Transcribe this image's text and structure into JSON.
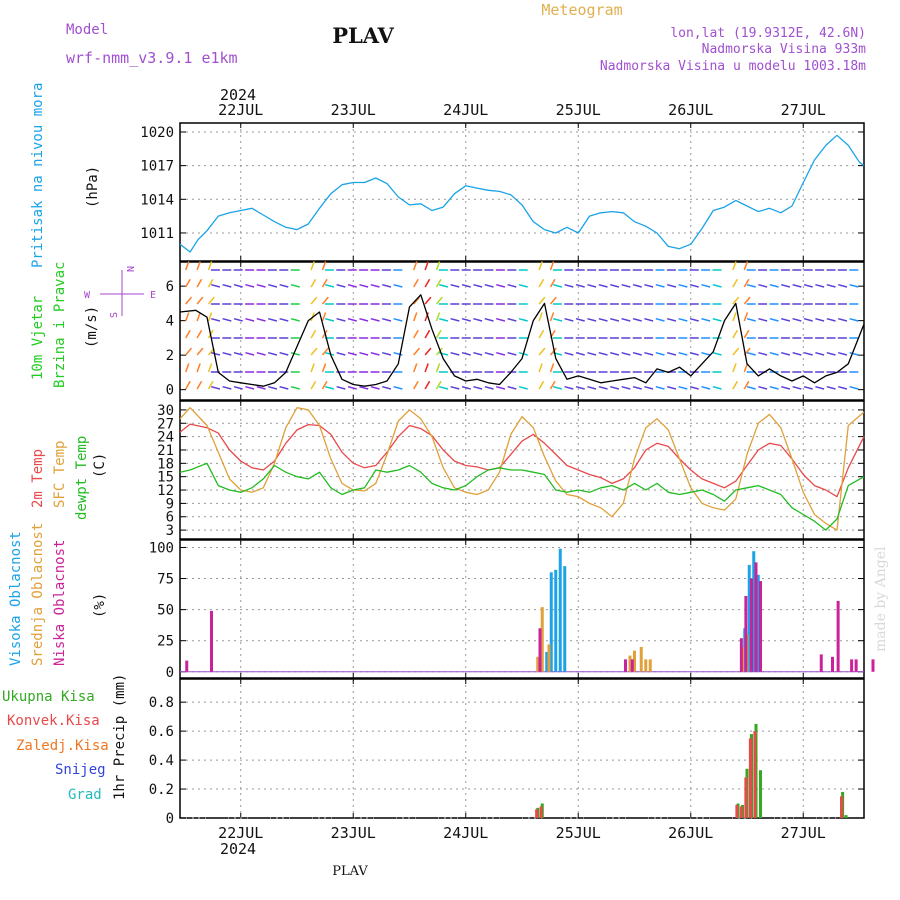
{
  "header": {
    "model_label": "Model",
    "model_value": "wrf-nmm_v3.9.1  e1km",
    "station": "PLAV",
    "title": "Meteogram",
    "lonlat": "lon,lat (19.9312E, 42.6N)",
    "elevation": "Nadmorska Visina 933m",
    "model_elevation": "Nadmorska Visina u modelu 1003.18m",
    "year_top": "2024",
    "year_bottom": "2024",
    "footer_station": "PLAV",
    "watermark": "made by Angel"
  },
  "time_axis": {
    "labels": [
      "22JUL",
      "23JUL",
      "24JUL",
      "25JUL",
      "26JUL",
      "27JUL"
    ],
    "tick_days": [
      0,
      1,
      2,
      3,
      4,
      5
    ],
    "range_days": [
      -0.54,
      5.54
    ]
  },
  "colors": {
    "pressure": "#1aa3e8",
    "temp2m": "#e8494b",
    "sfc_temp": "#e0a03a",
    "dewpt": "#22bb22",
    "high_cloud": "#1aa3e8",
    "mid_cloud": "#e0a03a",
    "low_cloud": "#cc2299",
    "total_rain": "#33aa22",
    "conv_rain": "#e8494b",
    "frozen_rain": "#ee7722",
    "snow": "#3344dd",
    "graupel": "#22bbbb",
    "wind_label": "#22cc22",
    "wind_compass": "#aa44cc"
  },
  "panels": {
    "pressure": {
      "ylabel_color_text": "Pritisak na nivou mora",
      "unit": "(hPa)",
      "ticks": [
        "1011",
        "1014",
        "1017",
        "1020"
      ]
    },
    "wind": {
      "ylabel_line1": "10m Vjetar",
      "ylabel_line2": "Brzina i Pravac",
      "unit": "(m/s)",
      "ticks": [
        "0",
        "2",
        "4",
        "6"
      ],
      "compass_n": "N",
      "compass_w": "W",
      "compass_e": "E",
      "compass_s": "S"
    },
    "temperature": {
      "ylabel_temp2m": "2m Temp",
      "ylabel_sfc": "SFC Temp",
      "ylabel_dewpt": "dewpt Temp",
      "unit": "(C)",
      "ticks": [
        "3",
        "6",
        "9",
        "12",
        "15",
        "18",
        "21",
        "24",
        "27",
        "30"
      ]
    },
    "clouds": {
      "ylabel_high": "Visoka Oblacnost",
      "ylabel_mid": "Srednja Oblacnost",
      "ylabel_low": "Niska Oblacnost",
      "unit": "(%)",
      "ticks": [
        "0",
        "25",
        "50",
        "75",
        "100"
      ]
    },
    "precip": {
      "legend": [
        "Ukupna Kisa",
        "Konvek.Kisa",
        "Zaledj.Kisa",
        "Snijeg",
        "Grad"
      ],
      "ylabel": "1hr Precip (mm)",
      "ticks": [
        "0",
        "0.2",
        "0.4",
        "0.6",
        "0.8"
      ]
    }
  },
  "chart_data": [
    {
      "type": "line",
      "title": "Pritisak na nivou mora",
      "ylabel": "(hPa)",
      "ylim": [
        1008.5,
        1020.8
      ],
      "x_unit": "days from 22JUL 00UTC",
      "series": [
        {
          "name": "Pritisak na nivou mora",
          "x": [
            -0.54,
            -0.45,
            -0.38,
            -0.3,
            -0.2,
            -0.1,
            0,
            0.1,
            0.2,
            0.3,
            0.4,
            0.5,
            0.6,
            0.7,
            0.8,
            0.9,
            1,
            1.1,
            1.2,
            1.3,
            1.4,
            1.5,
            1.6,
            1.7,
            1.8,
            1.9,
            2,
            2.1,
            2.2,
            2.3,
            2.4,
            2.5,
            2.6,
            2.7,
            2.8,
            2.9,
            3,
            3.1,
            3.2,
            3.3,
            3.4,
            3.5,
            3.6,
            3.7,
            3.8,
            3.9,
            4,
            4.1,
            4.2,
            4.3,
            4.4,
            4.5,
            4.6,
            4.7,
            4.8,
            4.9,
            5,
            5.1,
            5.2,
            5.3,
            5.4,
            5.5,
            5.54
          ],
          "y": [
            1010.0,
            1009.3,
            1010.4,
            1011.2,
            1012.5,
            1012.8,
            1013.0,
            1013.2,
            1012.6,
            1012.0,
            1011.5,
            1011.3,
            1011.8,
            1013.2,
            1014.5,
            1015.3,
            1015.5,
            1015.5,
            1015.9,
            1015.4,
            1014.2,
            1013.5,
            1013.6,
            1013.0,
            1013.3,
            1014.5,
            1015.2,
            1015.0,
            1014.8,
            1014.7,
            1014.4,
            1013.5,
            1012.0,
            1011.3,
            1011.0,
            1011.5,
            1011.0,
            1012.5,
            1012.8,
            1012.9,
            1012.8,
            1012.0,
            1011.6,
            1011.0,
            1009.8,
            1009.6,
            1010.0,
            1011.4,
            1013.0,
            1013.3,
            1013.9,
            1013.4,
            1012.9,
            1013.2,
            1012.8,
            1013.4,
            1015.5,
            1017.5,
            1018.8,
            1019.7,
            1018.8,
            1017.3,
            1017.0
          ]
        }
      ]
    },
    {
      "type": "line",
      "title": "10m Vjetar Brzina i Pravac",
      "ylabel": "(m/s)",
      "ylim": [
        -0.6,
        7.4
      ],
      "series": [
        {
          "name": "10m Vjetar",
          "x": [
            -0.54,
            -0.4,
            -0.3,
            -0.2,
            -0.1,
            0,
            0.1,
            0.2,
            0.3,
            0.4,
            0.5,
            0.6,
            0.7,
            0.8,
            0.9,
            1,
            1.1,
            1.2,
            1.3,
            1.4,
            1.5,
            1.6,
            1.7,
            1.8,
            1.9,
            2,
            2.1,
            2.2,
            2.3,
            2.4,
            2.5,
            2.6,
            2.7,
            2.8,
            2.9,
            3,
            3.1,
            3.2,
            3.3,
            3.4,
            3.5,
            3.6,
            3.7,
            3.8,
            3.9,
            4,
            4.1,
            4.2,
            4.3,
            4.4,
            4.5,
            4.6,
            4.7,
            4.8,
            4.9,
            5,
            5.1,
            5.2,
            5.3,
            5.4,
            5.54
          ],
          "y": [
            4.5,
            4.6,
            4.2,
            1.0,
            0.5,
            0.4,
            0.3,
            0.2,
            0.4,
            1.0,
            2.5,
            4.0,
            4.5,
            2.0,
            0.6,
            0.3,
            0.2,
            0.3,
            0.5,
            1.5,
            4.8,
            5.5,
            3.5,
            1.8,
            0.8,
            0.5,
            0.6,
            0.4,
            0.3,
            1.0,
            1.8,
            4.0,
            5.0,
            1.8,
            0.6,
            0.8,
            0.6,
            0.4,
            0.5,
            0.6,
            0.7,
            0.4,
            1.2,
            1.0,
            1.3,
            0.8,
            1.5,
            2.2,
            4.0,
            5.0,
            1.5,
            0.8,
            1.2,
            0.8,
            0.5,
            0.8,
            0.4,
            0.8,
            1.0,
            1.5,
            3.8
          ]
        }
      ]
    },
    {
      "type": "line",
      "title": "2m Temp, SFC Temp, dewpt Temp",
      "ylabel": "(C)",
      "ylim": [
        1.0,
        32.0
      ],
      "series": [
        {
          "name": "2m Temp",
          "x": [
            -0.54,
            -0.45,
            -0.3,
            -0.2,
            -0.1,
            0,
            0.1,
            0.2,
            0.3,
            0.4,
            0.5,
            0.6,
            0.7,
            0.8,
            0.9,
            1,
            1.1,
            1.2,
            1.3,
            1.4,
            1.5,
            1.6,
            1.7,
            1.8,
            1.9,
            2,
            2.1,
            2.2,
            2.3,
            2.4,
            2.5,
            2.6,
            2.7,
            2.8,
            2.9,
            3,
            3.1,
            3.2,
            3.3,
            3.4,
            3.5,
            3.6,
            3.7,
            3.8,
            3.9,
            4,
            4.1,
            4.2,
            4.3,
            4.4,
            4.5,
            4.6,
            4.7,
            4.8,
            4.9,
            5,
            5.1,
            5.2,
            5.3,
            5.4,
            5.54
          ],
          "y": [
            25.0,
            26.8,
            26.0,
            24.8,
            21.0,
            18.5,
            17.0,
            16.5,
            18.5,
            22.5,
            25.5,
            26.7,
            26.5,
            24.5,
            20.5,
            18.0,
            17.0,
            17.5,
            20.5,
            24.0,
            26.5,
            25.8,
            24.2,
            21.0,
            18.5,
            17.5,
            17.2,
            16.5,
            17.0,
            20.0,
            23.0,
            24.5,
            22.5,
            20.0,
            17.5,
            16.5,
            15.5,
            14.8,
            13.5,
            14.5,
            17.0,
            21.0,
            22.5,
            21.8,
            19.0,
            16.5,
            14.5,
            13.5,
            12.5,
            14.0,
            17.5,
            21.0,
            22.5,
            22.0,
            19.0,
            15.5,
            13.0,
            12.0,
            10.5,
            17.0,
            24.0
          ]
        },
        {
          "name": "SFC Temp",
          "x": [
            -0.54,
            -0.45,
            -0.3,
            -0.2,
            -0.1,
            0,
            0.1,
            0.2,
            0.3,
            0.4,
            0.5,
            0.6,
            0.7,
            0.8,
            0.9,
            1,
            1.1,
            1.2,
            1.3,
            1.4,
            1.5,
            1.6,
            1.7,
            1.8,
            1.9,
            2,
            2.1,
            2.2,
            2.3,
            2.4,
            2.5,
            2.6,
            2.7,
            2.8,
            2.9,
            3,
            3.1,
            3.2,
            3.3,
            3.4,
            3.5,
            3.6,
            3.7,
            3.8,
            3.9,
            4,
            4.1,
            4.2,
            4.3,
            4.4,
            4.5,
            4.6,
            4.7,
            4.8,
            4.9,
            5,
            5.1,
            5.2,
            5.3,
            5.4,
            5.54
          ],
          "y": [
            28.0,
            30.5,
            26.5,
            20.5,
            14.5,
            12.0,
            11.5,
            12.5,
            18.0,
            26.0,
            30.5,
            30.0,
            26.5,
            19.0,
            13.5,
            12.0,
            11.8,
            13.5,
            20.0,
            27.5,
            30.0,
            28.0,
            24.0,
            17.0,
            12.5,
            11.5,
            11.0,
            12.0,
            16.0,
            24.5,
            28.5,
            26.0,
            19.5,
            14.0,
            11.0,
            10.5,
            9.0,
            8.0,
            6.0,
            9.0,
            19.0,
            26.0,
            28.0,
            25.5,
            19.0,
            12.5,
            9.0,
            8.0,
            7.5,
            10.0,
            20.0,
            27.0,
            29.0,
            26.0,
            19.0,
            11.5,
            6.5,
            4.5,
            3.0,
            26.5,
            29.5
          ]
        },
        {
          "name": "dewpt Temp",
          "x": [
            -0.54,
            -0.45,
            -0.3,
            -0.2,
            -0.1,
            0,
            0.1,
            0.2,
            0.3,
            0.4,
            0.5,
            0.6,
            0.7,
            0.8,
            0.9,
            1,
            1.1,
            1.2,
            1.3,
            1.4,
            1.5,
            1.6,
            1.7,
            1.8,
            1.9,
            2,
            2.1,
            2.2,
            2.3,
            2.4,
            2.5,
            2.6,
            2.7,
            2.8,
            2.9,
            3,
            3.1,
            3.2,
            3.3,
            3.4,
            3.5,
            3.6,
            3.7,
            3.8,
            3.9,
            4,
            4.1,
            4.2,
            4.3,
            4.4,
            4.5,
            4.6,
            4.7,
            4.8,
            4.9,
            5,
            5.1,
            5.2,
            5.3,
            5.4,
            5.54
          ],
          "y": [
            16.0,
            16.5,
            18.0,
            13.0,
            12.0,
            11.5,
            12.5,
            14.5,
            17.5,
            16.0,
            15.0,
            14.5,
            16.0,
            12.5,
            11.0,
            12.0,
            12.5,
            16.5,
            16.0,
            16.5,
            17.5,
            16.0,
            13.5,
            12.5,
            12.0,
            13.0,
            15.0,
            16.5,
            17.0,
            16.5,
            16.5,
            16.0,
            15.5,
            12.0,
            11.5,
            12.0,
            11.5,
            12.5,
            13.0,
            12.0,
            13.5,
            12.0,
            13.5,
            11.5,
            11.0,
            11.5,
            12.0,
            11.0,
            9.5,
            12.0,
            12.5,
            13.0,
            12.0,
            11.0,
            8.0,
            6.5,
            5.0,
            3.0,
            5.5,
            13.0,
            15.0
          ]
        }
      ]
    },
    {
      "type": "bar",
      "title": "Oblacnost",
      "ylabel": "(%)",
      "ylim": [
        -5,
        106
      ],
      "series": [
        {
          "name": "Visoka Oblacnost",
          "x": [
            2.72,
            2.76,
            2.8,
            2.84,
            2.88,
            4.48,
            4.52,
            4.56,
            4.6
          ],
          "y": [
            16,
            80,
            82,
            99,
            85,
            35,
            86,
            97,
            78
          ]
        },
        {
          "name": "Srednja Oblacnost",
          "x": [
            2.64,
            2.68,
            2.74,
            3.46,
            3.5,
            3.56,
            3.6,
            3.64,
            4.46,
            4.5
          ],
          "y": [
            12,
            52,
            22,
            13,
            17,
            20,
            10,
            10,
            20,
            30
          ]
        },
        {
          "name": "Niska Oblacnost",
          "x": [
            -0.48,
            -0.26,
            2.66,
            3.42,
            3.48,
            4.45,
            4.49,
            4.54,
            4.58,
            4.62,
            5.16,
            5.26,
            5.31,
            5.43,
            5.47,
            5.62,
            6.28,
            6.32
          ],
          "y": [
            9,
            49,
            35,
            10,
            10,
            27,
            61,
            75,
            88,
            73,
            14,
            12,
            57,
            10,
            10,
            10,
            12,
            10
          ]
        }
      ]
    },
    {
      "type": "bar",
      "title": "1hr Precip",
      "ylabel": "1hr Precip (mm)",
      "ylim": [
        0,
        0.96
      ],
      "series": [
        {
          "name": "Ukupna Kisa",
          "x": [
            2.64,
            2.68,
            4.42,
            4.46,
            4.5,
            4.54,
            4.58,
            4.62,
            5.35,
            5.38
          ],
          "y": [
            0.07,
            0.1,
            0.1,
            0.09,
            0.34,
            0.58,
            0.65,
            0.33,
            0.18,
            0.02
          ]
        },
        {
          "name": "Konvek.Kisa",
          "x": [
            2.63,
            2.67,
            4.41,
            4.45,
            4.49,
            4.53,
            4.57,
            5.34
          ],
          "y": [
            0.06,
            0.08,
            0.09,
            0.08,
            0.28,
            0.55,
            0.6,
            0.15
          ]
        }
      ]
    }
  ]
}
